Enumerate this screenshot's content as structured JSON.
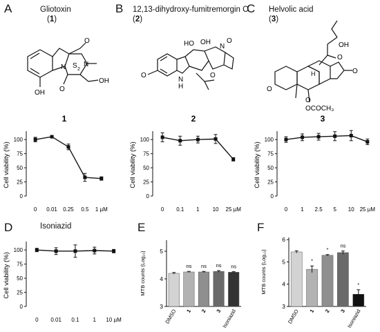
{
  "panels": {
    "A": {
      "letter": "A",
      "name": "Gliotoxin",
      "number_open": "(",
      "number": "1",
      "number_close": ")"
    },
    "B": {
      "letter": "B",
      "name": "12,13-dihydroxy-fumitremorgin C",
      "number_open": "(",
      "number": "2",
      "number_close": ")"
    },
    "C": {
      "letter": "C",
      "name": "Helvolic acid",
      "number_open": "(",
      "number": "3",
      "number_close": ")"
    },
    "D": {
      "letter": "D",
      "name": "Isoniazid"
    },
    "E": {
      "letter": "E"
    },
    "F": {
      "letter": "F"
    }
  },
  "structure_labels": {
    "gliotoxin": {
      "O1": "O",
      "O2": "O",
      "N1": "N",
      "N2": "N",
      "S2": "S",
      "S2_sub": "2",
      "OH1": "OH",
      "OH2": "OH"
    },
    "fumitremorgin": {
      "HO": "HO",
      "OH": "OH",
      "N1": "N",
      "O1": "O",
      "O2": "O",
      "OMe": "O",
      "NH": "N",
      "H": "H"
    },
    "helvolic": {
      "OH": "OH",
      "O1": "O",
      "O2": "O",
      "O3": "O",
      "O4": "O",
      "H": "H",
      "OCOCH3": "OCOCH₃"
    }
  },
  "chart_data": [
    {
      "id": "viability-1",
      "type": "line",
      "title": "1",
      "ylabel": "Cell viability (%)",
      "xlabel": "",
      "categories": [
        "0",
        "0.01",
        "0.25",
        "0.5",
        "1 µM"
      ],
      "yticks": [
        "100",
        "75",
        "50",
        "25",
        "0"
      ],
      "ylim": [
        0,
        110
      ],
      "values": [
        100,
        105,
        87,
        33,
        31
      ],
      "errors": [
        4,
        1,
        5,
        7,
        3
      ]
    },
    {
      "id": "viability-2",
      "type": "line",
      "title": "2",
      "ylabel": "Cell viability (%)",
      "xlabel": "",
      "categories": [
        "0",
        "0.1",
        "1",
        "10",
        "25 µM"
      ],
      "yticks": [
        "100",
        "75",
        "50",
        "25",
        "0"
      ],
      "ylim": [
        0,
        110
      ],
      "values": [
        104,
        98,
        100,
        101,
        65
      ],
      "errors": [
        8,
        8,
        6,
        8,
        3
      ]
    },
    {
      "id": "viability-3",
      "type": "line",
      "title": "3",
      "ylabel": "Cell viability (%)",
      "xlabel": "",
      "categories": [
        "0",
        "1",
        "2.5",
        "5",
        "10",
        "25 µM"
      ],
      "yticks": [
        "100",
        "75",
        "50",
        "25",
        "0"
      ],
      "ylim": [
        0,
        110
      ],
      "values": [
        100,
        104,
        105,
        106,
        107,
        96
      ],
      "errors": [
        5,
        6,
        6,
        8,
        9,
        5
      ]
    },
    {
      "id": "viability-isoniazid",
      "type": "line",
      "title": "",
      "ylabel": "Cell viability (%)",
      "xlabel": "",
      "categories": [
        "0",
        "0.01",
        "0.1",
        "1",
        "10 µM"
      ],
      "yticks": [
        "100",
        "75",
        "50",
        "25",
        "0"
      ],
      "ylim": [
        0,
        110
      ],
      "values": [
        100,
        98,
        98,
        99,
        98
      ],
      "errors": [
        3,
        6,
        11,
        6,
        3
      ]
    },
    {
      "id": "mtb-E",
      "type": "bar",
      "title": "",
      "ylabel": "MTB counts (Log₁₀)",
      "xlabel": "",
      "categories": [
        "DMSO",
        "1",
        "2",
        "3",
        "Isoniazid"
      ],
      "yticks": [
        "5",
        "4",
        "3"
      ],
      "ylim": [
        3,
        5.4
      ],
      "values": [
        4.2,
        4.25,
        4.25,
        4.27,
        4.24
      ],
      "errors": [
        0.03,
        0.02,
        0.02,
        0.03,
        0.02
      ],
      "annotations": [
        "",
        "ns",
        "ns",
        "ns",
        "ns"
      ],
      "colors": [
        "#d3d3d3",
        "#b2b2b2",
        "#8f8f8f",
        "#6a6a6a",
        "#333333"
      ]
    },
    {
      "id": "mtb-F",
      "type": "bar",
      "title": "",
      "ylabel": "MTB counts (Log₁₀)",
      "xlabel": "",
      "categories": [
        "DMSO",
        "1",
        "2",
        "3",
        "Isoniazid"
      ],
      "yticks": [
        "6",
        "5",
        "4",
        "3"
      ],
      "ylim": [
        3,
        6.1
      ],
      "values": [
        5.45,
        4.67,
        5.3,
        5.42,
        3.55
      ],
      "errors": [
        0.05,
        0.15,
        0.03,
        0.07,
        0.2
      ],
      "annotations": [
        "",
        "*",
        "*",
        "ns",
        "*"
      ],
      "colors": [
        "#d3d3d3",
        "#b2b2b2",
        "#8f8f8f",
        "#6a6a6a",
        "#111111"
      ]
    }
  ]
}
